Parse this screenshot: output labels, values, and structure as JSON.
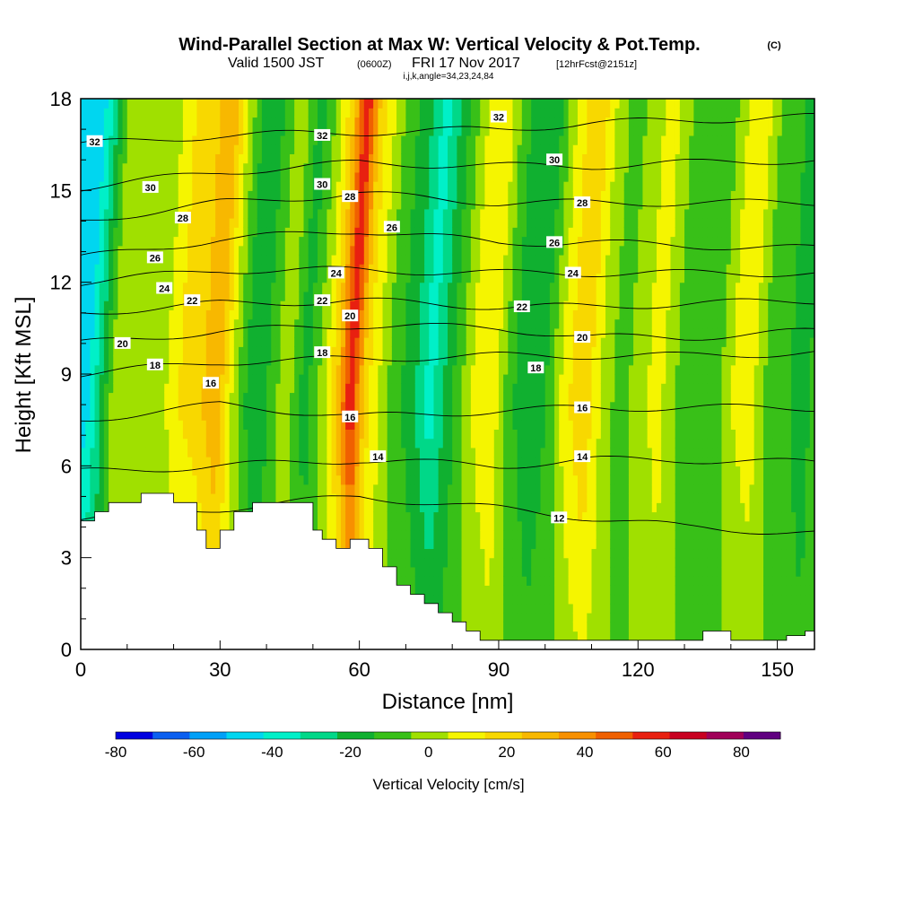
{
  "header": {
    "title": "Wind-Parallel Section at Max W: Vertical Velocity & Pot.Temp.",
    "copyright": "(C)",
    "valid_prefix": "Valid 1500 JST",
    "valid_z": "(0600Z)",
    "valid_date": "FRI 17 Nov 2017",
    "forecast": "[12hrFcst@2151z]",
    "indices": "i,j,k,angle=34,23,24,84"
  },
  "chart_data": {
    "type": "heatmap",
    "xlabel": "Distance [nm]",
    "ylabel": "Height [Kft MSL]",
    "xlim": [
      0,
      158
    ],
    "ylim": [
      0,
      18
    ],
    "x_ticks": [
      "0",
      "30",
      "60",
      "90",
      "120",
      "150"
    ],
    "y_ticks": [
      "0",
      "3",
      "6",
      "9",
      "12",
      "15",
      "18"
    ],
    "colorbar": {
      "title": "Vertical Velocity [cm/s]",
      "labels": [
        "-80",
        "-60",
        "-40",
        "-20",
        "0",
        "20",
        "40",
        "60",
        "80"
      ],
      "levels": [
        -80,
        -70,
        -60,
        -50,
        -40,
        -30,
        -20,
        -10,
        0,
        10,
        20,
        30,
        40,
        50,
        60,
        70,
        80,
        90
      ],
      "colors": [
        "#0000e0",
        "#0a5ff0",
        "#00a0f8",
        "#00d6f0",
        "#00f0c8",
        "#00d888",
        "#10b030",
        "#38c018",
        "#a0e000",
        "#f5f500",
        "#f8d800",
        "#f8b800",
        "#f89000",
        "#f06000",
        "#e82010",
        "#c80020",
        "#a00058",
        "#600080"
      ]
    },
    "velocity_columns": [
      {
        "x": 1,
        "v": -45
      },
      {
        "x": 3,
        "v": -30
      },
      {
        "x": 7,
        "v": 5
      },
      {
        "x": 12,
        "v": 8
      },
      {
        "x": 17,
        "v": 5
      },
      {
        "x": 21,
        "v": 20
      },
      {
        "x": 25,
        "v": 25
      },
      {
        "x": 29,
        "v": 40
      },
      {
        "x": 33,
        "v": 5
      },
      {
        "x": 37,
        "v": -20
      },
      {
        "x": 40,
        "v": -10
      },
      {
        "x": 44,
        "v": 8
      },
      {
        "x": 48,
        "v": -15
      },
      {
        "x": 52,
        "v": 5
      },
      {
        "x": 55,
        "v": 30
      },
      {
        "x": 58,
        "v": 70
      },
      {
        "x": 61,
        "v": 25
      },
      {
        "x": 64,
        "v": 10
      },
      {
        "x": 67,
        "v": -5
      },
      {
        "x": 71,
        "v": -15
      },
      {
        "x": 75,
        "v": -35
      },
      {
        "x": 79,
        "v": -15
      },
      {
        "x": 84,
        "v": 10
      },
      {
        "x": 88,
        "v": 20
      },
      {
        "x": 92,
        "v": -5
      },
      {
        "x": 96,
        "v": -20
      },
      {
        "x": 100,
        "v": -10
      },
      {
        "x": 104,
        "v": 15
      },
      {
        "x": 108,
        "v": 30
      },
      {
        "x": 112,
        "v": 8
      },
      {
        "x": 116,
        "v": -5
      },
      {
        "x": 120,
        "v": 5
      },
      {
        "x": 124,
        "v": 15
      },
      {
        "x": 128,
        "v": 0
      },
      {
        "x": 132,
        "v": -5
      },
      {
        "x": 136,
        "v": -8
      },
      {
        "x": 140,
        "v": 10
      },
      {
        "x": 144,
        "v": 15
      },
      {
        "x": 148,
        "v": -5
      },
      {
        "x": 152,
        "v": -8
      },
      {
        "x": 155,
        "v": -20
      },
      {
        "x": 157,
        "v": -8
      }
    ],
    "terrain": [
      [
        0,
        4.2
      ],
      [
        3,
        4.2
      ],
      [
        3,
        4.5
      ],
      [
        6,
        4.5
      ],
      [
        6,
        4.8
      ],
      [
        13,
        4.8
      ],
      [
        13,
        5.1
      ],
      [
        20,
        5.1
      ],
      [
        20,
        4.8
      ],
      [
        25,
        4.8
      ],
      [
        25,
        3.9
      ],
      [
        27,
        3.9
      ],
      [
        27,
        3.3
      ],
      [
        30,
        3.3
      ],
      [
        30,
        3.9
      ],
      [
        33,
        3.9
      ],
      [
        33,
        4.5
      ],
      [
        37,
        4.5
      ],
      [
        37,
        4.8
      ],
      [
        50,
        4.8
      ],
      [
        50,
        3.9
      ],
      [
        52,
        3.9
      ],
      [
        52,
        3.6
      ],
      [
        55,
        3.6
      ],
      [
        55,
        3.3
      ],
      [
        58,
        3.3
      ],
      [
        58,
        3.6
      ],
      [
        62,
        3.6
      ],
      [
        62,
        3.3
      ],
      [
        65,
        3.3
      ],
      [
        65,
        2.7
      ],
      [
        68,
        2.7
      ],
      [
        68,
        2.1
      ],
      [
        71,
        2.1
      ],
      [
        71,
        1.8
      ],
      [
        74,
        1.8
      ],
      [
        74,
        1.5
      ],
      [
        77,
        1.5
      ],
      [
        77,
        1.2
      ],
      [
        80,
        1.2
      ],
      [
        80,
        0.9
      ],
      [
        83,
        0.9
      ],
      [
        83,
        0.6
      ],
      [
        86,
        0.6
      ],
      [
        86,
        0.3
      ],
      [
        134,
        0.3
      ],
      [
        134,
        0.6
      ],
      [
        140,
        0.6
      ],
      [
        140,
        0.3
      ],
      [
        152,
        0.3
      ],
      [
        152,
        0.45
      ],
      [
        156,
        0.45
      ],
      [
        156,
        0.6
      ],
      [
        158,
        0.6
      ],
      [
        158,
        0
      ],
      [
        0,
        0
      ]
    ],
    "theta_contours": [
      {
        "value": 12,
        "ys": [
          [
            0,
            4.3
          ],
          [
            30,
            4.6
          ],
          [
            60,
            5.0
          ],
          [
            90,
            4.6
          ],
          [
            110,
            4.3
          ],
          [
            130,
            4.0
          ],
          [
            158,
            3.8
          ]
        ]
      },
      {
        "value": 14,
        "ys": [
          [
            0,
            5.8
          ],
          [
            30,
            6.0
          ],
          [
            60,
            6.2
          ],
          [
            90,
            6.0
          ],
          [
            110,
            6.2
          ],
          [
            130,
            6.2
          ],
          [
            158,
            6.1
          ]
        ]
      },
      {
        "value": 16,
        "ys": [
          [
            0,
            7.5
          ],
          [
            30,
            8.0
          ],
          [
            60,
            7.6
          ],
          [
            90,
            7.8
          ],
          [
            110,
            7.9
          ],
          [
            130,
            7.9
          ],
          [
            158,
            7.9
          ]
        ]
      },
      {
        "value": 18,
        "ys": [
          [
            0,
            9.0
          ],
          [
            30,
            9.4
          ],
          [
            60,
            9.5
          ],
          [
            90,
            9.6
          ],
          [
            110,
            9.6
          ],
          [
            130,
            9.6
          ],
          [
            158,
            9.7
          ]
        ]
      },
      {
        "value": 20,
        "ys": [
          [
            0,
            10.0
          ],
          [
            30,
            10.4
          ],
          [
            60,
            10.6
          ],
          [
            90,
            10.5
          ],
          [
            110,
            10.2
          ],
          [
            130,
            10.2
          ],
          [
            158,
            10.4
          ]
        ]
      },
      {
        "value": 22,
        "ys": [
          [
            0,
            11.0
          ],
          [
            30,
            11.3
          ],
          [
            60,
            11.4
          ],
          [
            90,
            11.2
          ],
          [
            110,
            11.2
          ],
          [
            130,
            11.3
          ],
          [
            158,
            11.4
          ]
        ]
      },
      {
        "value": 24,
        "ys": [
          [
            0,
            12.0
          ],
          [
            30,
            12.4
          ],
          [
            60,
            12.4
          ],
          [
            90,
            12.3
          ],
          [
            110,
            12.3
          ],
          [
            130,
            12.3
          ],
          [
            158,
            12.3
          ]
        ]
      },
      {
        "value": 26,
        "ys": [
          [
            0,
            12.8
          ],
          [
            30,
            13.4
          ],
          [
            60,
            13.7
          ],
          [
            90,
            13.3
          ],
          [
            110,
            13.3
          ],
          [
            130,
            13.2
          ],
          [
            158,
            13.1
          ]
        ]
      },
      {
        "value": 28,
        "ys": [
          [
            0,
            14.0
          ],
          [
            30,
            14.6
          ],
          [
            60,
            14.9
          ],
          [
            90,
            14.6
          ],
          [
            110,
            14.6
          ],
          [
            130,
            14.6
          ],
          [
            158,
            14.6
          ]
        ]
      },
      {
        "value": 30,
        "ys": [
          [
            0,
            15.1
          ],
          [
            30,
            15.6
          ],
          [
            60,
            15.9
          ],
          [
            90,
            15.8
          ],
          [
            110,
            15.8
          ],
          [
            130,
            15.9
          ],
          [
            158,
            16.0
          ]
        ]
      },
      {
        "value": 32,
        "ys": [
          [
            0,
            16.5
          ],
          [
            30,
            16.8
          ],
          [
            60,
            16.9
          ],
          [
            90,
            17.0
          ],
          [
            110,
            17.2
          ],
          [
            130,
            17.3
          ],
          [
            158,
            17.4
          ]
        ]
      }
    ],
    "contour_labels": [
      {
        "text": "32",
        "x": 3,
        "y": 16.6
      },
      {
        "text": "30",
        "x": 15,
        "y": 15.1
      },
      {
        "text": "28",
        "x": 22,
        "y": 14.1
      },
      {
        "text": "26",
        "x": 16,
        "y": 12.8
      },
      {
        "text": "24",
        "x": 18,
        "y": 11.8
      },
      {
        "text": "22",
        "x": 24,
        "y": 11.4
      },
      {
        "text": "20",
        "x": 9,
        "y": 10.0
      },
      {
        "text": "18",
        "x": 16,
        "y": 9.3
      },
      {
        "text": "16",
        "x": 28,
        "y": 8.7
      },
      {
        "text": "32",
        "x": 52,
        "y": 16.8
      },
      {
        "text": "30",
        "x": 52,
        "y": 15.2
      },
      {
        "text": "28",
        "x": 58,
        "y": 14.8
      },
      {
        "text": "26",
        "x": 67,
        "y": 13.8
      },
      {
        "text": "24",
        "x": 55,
        "y": 12.3
      },
      {
        "text": "22",
        "x": 52,
        "y": 11.4
      },
      {
        "text": "20",
        "x": 58,
        "y": 10.9
      },
      {
        "text": "18",
        "x": 52,
        "y": 9.7
      },
      {
        "text": "16",
        "x": 58,
        "y": 7.6
      },
      {
        "text": "14",
        "x": 64,
        "y": 6.3
      },
      {
        "text": "32",
        "x": 90,
        "y": 17.4
      },
      {
        "text": "30",
        "x": 102,
        "y": 16.0
      },
      {
        "text": "28",
        "x": 108,
        "y": 14.6
      },
      {
        "text": "26",
        "x": 102,
        "y": 13.3
      },
      {
        "text": "24",
        "x": 106,
        "y": 12.3
      },
      {
        "text": "22",
        "x": 95,
        "y": 11.2
      },
      {
        "text": "20",
        "x": 108,
        "y": 10.2
      },
      {
        "text": "18",
        "x": 98,
        "y": 9.2
      },
      {
        "text": "16",
        "x": 108,
        "y": 7.9
      },
      {
        "text": "14",
        "x": 108,
        "y": 6.3
      },
      {
        "text": "12",
        "x": 103,
        "y": 4.3
      }
    ]
  }
}
